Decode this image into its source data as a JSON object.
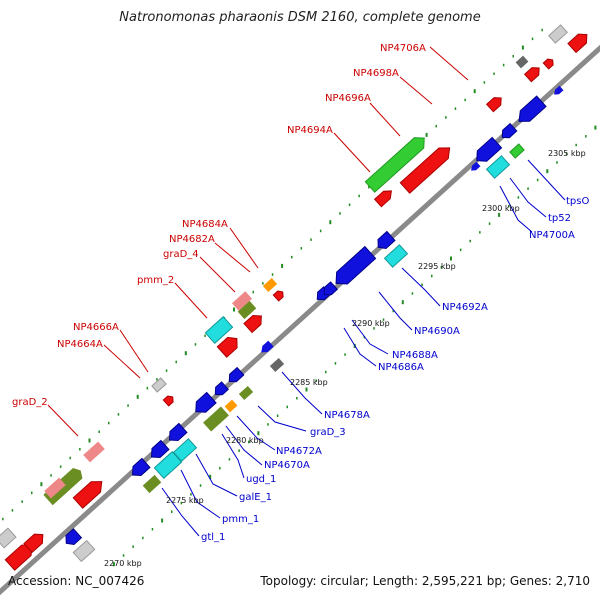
{
  "title": "Natronomonas pharaonis DSM 2160, complete genome",
  "accession": "Accession: NC_007426",
  "topology": "Topology: circular; Length: 2,595,221 bp; Genes: 2,710",
  "colors": {
    "backbone": "#8a8a8a",
    "forward_gene": "#ee1111",
    "reverse_gene": "#1111dd",
    "label_forward": "#cc0000",
    "label_reverse": "#0000cc",
    "cds_green": "#33cc33",
    "cds_olive": "#6b8e23",
    "cds_cyan": "#22dddd",
    "cds_pink": "#ee8888",
    "cds_orange": "#ff9900",
    "cds_grey": "#666666",
    "cds_silver": "#cccccc",
    "dot_green": "#228b22"
  },
  "ticks": [
    "2270 kbp",
    "2275 kbp",
    "2280 kbp",
    "2285 kbp",
    "2290 kbp",
    "2295 kbp",
    "2300 kbp",
    "2305 kbp"
  ],
  "labels_forward": [
    "NP4706A",
    "NP4698A",
    "NP4696A",
    "NP4694A",
    "NP4684A",
    "NP4682A",
    "graD_4",
    "pmm_2",
    "NP4666A",
    "NP4664A",
    "graD_2"
  ],
  "labels_reverse": [
    "tpsO",
    "tp52",
    "NP4700A",
    "NP4692A",
    "NP4690A",
    "NP4688A",
    "NP4686A",
    "NP4678A",
    "graD_3",
    "NP4672A",
    "NP4670A",
    "ugd_1",
    "galE_1",
    "pmm_1",
    "gtl_1"
  ]
}
